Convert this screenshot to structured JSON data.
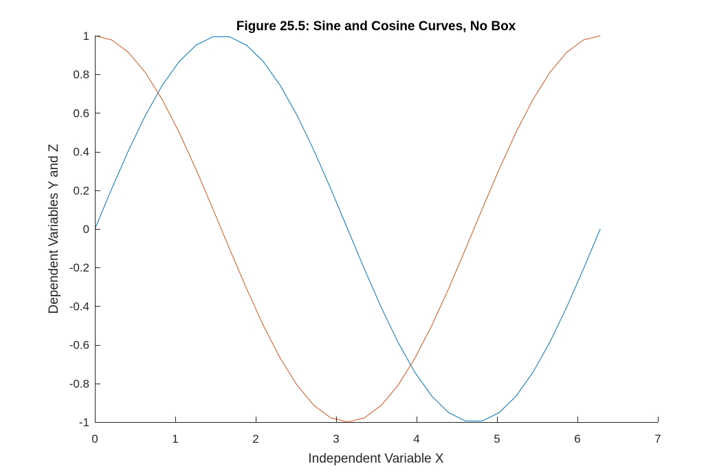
{
  "chart_data": {
    "type": "line",
    "title": "Figure 25.5: Sine and Cosine Curves, No Box",
    "xlabel": "Independent Variable X",
    "ylabel": "Dependent Variables Y and Z",
    "xlim": [
      0,
      7
    ],
    "ylim": [
      -1,
      1
    ],
    "xticks": [
      0,
      1,
      2,
      3,
      4,
      5,
      6,
      7
    ],
    "xtick_labels": [
      "0",
      "1",
      "2",
      "3",
      "4",
      "5",
      "6",
      "7"
    ],
    "yticks": [
      -1,
      -0.8,
      -0.6,
      -0.4,
      -0.2,
      0,
      0.2,
      0.4,
      0.6,
      0.8,
      1
    ],
    "ytick_labels": [
      "-1",
      "-0.8",
      "-0.6",
      "-0.4",
      "-0.2",
      "0",
      "0.2",
      "0.4",
      "0.6",
      "0.8",
      "1"
    ],
    "grid": false,
    "box": false,
    "x": [
      0,
      0.2094,
      0.4189,
      0.6283,
      0.8378,
      1.0472,
      1.2566,
      1.4661,
      1.6755,
      1.885,
      2.0944,
      2.3038,
      2.5133,
      2.7227,
      2.9322,
      3.1416,
      3.351,
      3.5605,
      3.7699,
      3.9794,
      4.1888,
      4.3982,
      4.6077,
      4.8171,
      5.0265,
      5.236,
      5.4454,
      5.6549,
      5.8643,
      6.0737,
      6.2832
    ],
    "series": [
      {
        "color": "#0072BD",
        "values": [
          0,
          0.2079,
          0.4067,
          0.5878,
          0.7431,
          0.866,
          0.9511,
          0.9945,
          0.9945,
          0.9511,
          0.866,
          0.7431,
          0.5878,
          0.4067,
          0.2079,
          0,
          -0.2079,
          -0.4067,
          -0.5878,
          -0.7431,
          -0.866,
          -0.9511,
          -0.9945,
          -0.9945,
          -0.9511,
          -0.866,
          -0.7431,
          -0.5878,
          -0.4067,
          -0.2079,
          0
        ]
      },
      {
        "color": "#D95319",
        "values": [
          1,
          0.9781,
          0.9135,
          0.809,
          0.6691,
          0.5,
          0.309,
          0.1045,
          -0.1045,
          -0.309,
          -0.5,
          -0.6691,
          -0.809,
          -0.9135,
          -0.9781,
          -1,
          -0.9781,
          -0.9135,
          -0.809,
          -0.6691,
          -0.5,
          -0.309,
          -0.1045,
          0.1045,
          0.309,
          0.5,
          0.6691,
          0.809,
          0.9135,
          0.9781,
          1
        ]
      }
    ]
  }
}
